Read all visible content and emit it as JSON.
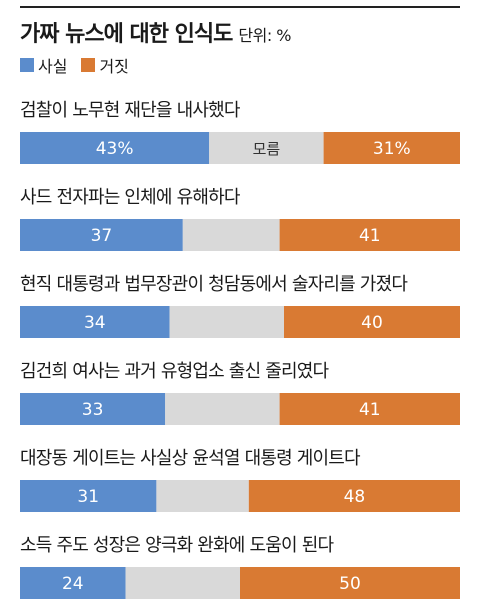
{
  "header": {
    "title": "가짜 뉴스에 대한 인식도",
    "unit": "단위: %"
  },
  "legend": [
    {
      "label": "사실",
      "color": "#5b8ccc"
    },
    {
      "label": "거짓",
      "color": "#d97a33"
    }
  ],
  "colors": {
    "true": "#5b8ccc",
    "false": "#d97a33",
    "unknown": "#d9d9d9"
  },
  "chart_data": {
    "type": "bar",
    "stacked": true,
    "orientation": "horizontal",
    "title": "가짜 뉴스에 대한 인식도",
    "unit": "단위: %",
    "xlim": [
      0,
      100
    ],
    "categories": [
      "검찰이 노무현 재단을 내사했다",
      "사드 전자파는 인체에 유해하다",
      "현직 대통령과 법무장관이 청담동에서 술자리를 가졌다",
      "김건희 여사는 과거 유형업소 출신 줄리였다",
      "대장동 게이트는 사실상 윤석열 대통령 게이트다",
      "소득 주도 성장은 양극화 완화에 도움이 된다"
    ],
    "series": [
      {
        "name": "사실",
        "values": [
          43,
          37,
          34,
          33,
          31,
          24
        ],
        "labels": [
          "43%",
          "37",
          "34",
          "33",
          "31",
          "24"
        ]
      },
      {
        "name": "거짓",
        "values": [
          31,
          41,
          40,
          41,
          48,
          50
        ],
        "labels": [
          "31%",
          "41",
          "40",
          "41",
          "48",
          "50"
        ]
      }
    ],
    "unknown_label": "모름",
    "legend": "top-left"
  }
}
